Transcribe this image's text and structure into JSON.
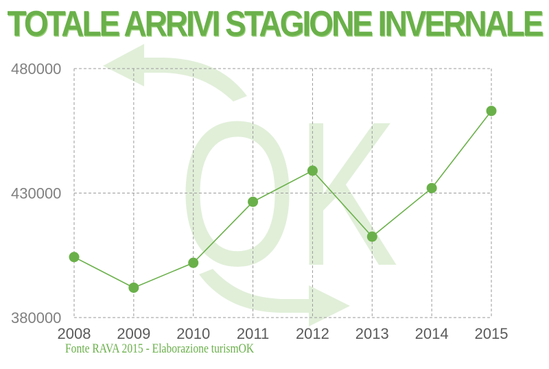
{
  "chart_data": {
    "type": "line",
    "title": "TOTALE ARRIVI STAGIONE INVERNALE",
    "xlabel": "",
    "ylabel": "",
    "categories": [
      "2008",
      "2009",
      "2010",
      "2011",
      "2012",
      "2013",
      "2014",
      "2015"
    ],
    "series": [
      {
        "values": [
          404300,
          392000,
          402000,
          426500,
          439000,
          412500,
          432000,
          463000
        ]
      }
    ],
    "ylim": [
      380000,
      480000
    ],
    "yticks": [
      "480000",
      "430000",
      "380000"
    ],
    "grid": true,
    "legend": "none",
    "line_color": "#6ab04a",
    "marker_color": "#6ab04a",
    "watermark": {
      "text": "OK",
      "color": "#d9ecd0"
    },
    "source": "Fonte RAVA 2015 - Elaborazione turismOK"
  }
}
